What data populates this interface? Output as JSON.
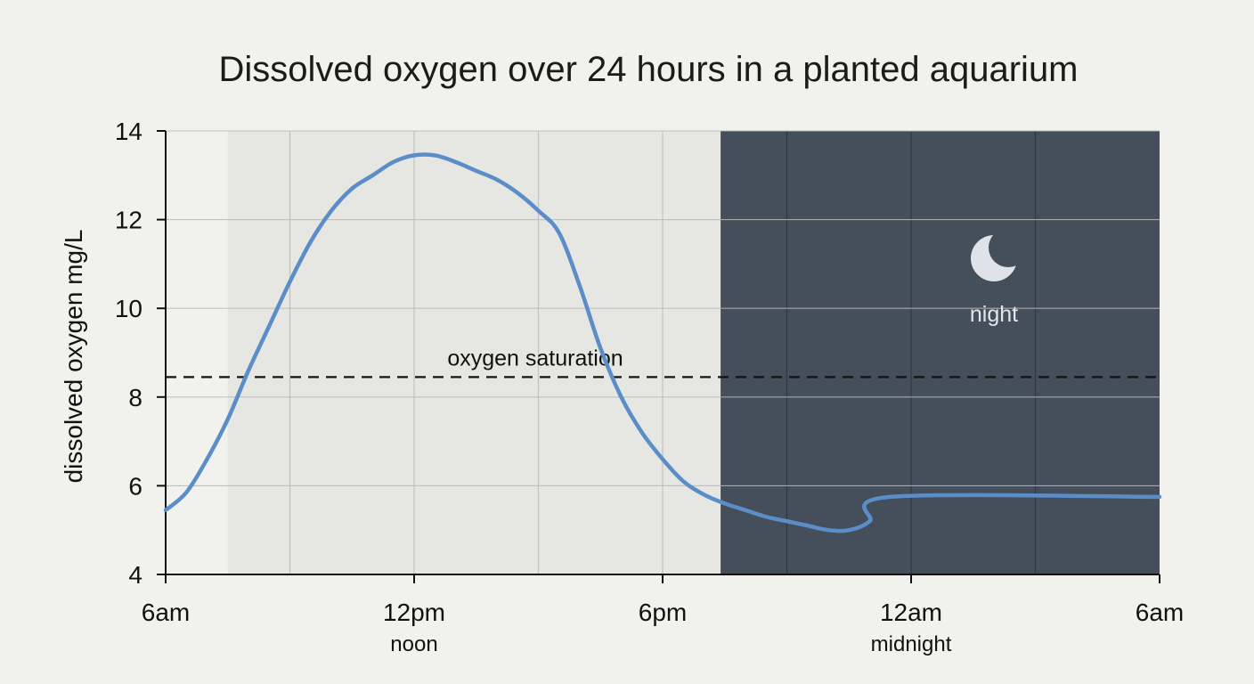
{
  "chart_data": {
    "type": "line",
    "title": "Dissolved oxygen over 24 hours in a planted aquarium",
    "xlabel": "",
    "ylabel": "dissolved oxygen mg/L",
    "ylim": [
      4,
      14
    ],
    "yticks": [
      4,
      6,
      8,
      10,
      12,
      14
    ],
    "xlim": [
      0,
      24
    ],
    "xticks": [
      {
        "hour": 0,
        "label": "6am",
        "sublabel": ""
      },
      {
        "hour": 6,
        "label": "12pm",
        "sublabel": "noon"
      },
      {
        "hour": 12,
        "label": "6pm",
        "sublabel": ""
      },
      {
        "hour": 18,
        "label": "12am",
        "sublabel": "midnight"
      },
      {
        "hour": 24,
        "label": "6am",
        "sublabel": ""
      }
    ],
    "grid": true,
    "series": [
      {
        "name": "",
        "color": "#5b8ec8",
        "x": [
          0,
          0.5,
          1,
          1.5,
          2,
          2.5,
          3,
          3.5,
          4,
          4.5,
          5,
          5.5,
          6,
          6.5,
          7,
          7.5,
          8,
          8.5,
          9,
          9.5,
          10,
          10.5,
          11,
          11.5,
          12,
          12.5,
          13,
          13.5,
          14,
          14.5,
          15,
          15.5,
          16,
          16.5,
          17,
          17.5,
          18,
          18.5,
          19,
          19.5,
          20,
          20.5,
          21,
          21.5,
          22,
          22.5,
          23,
          23.5,
          24
        ],
        "y": [
          5.45,
          5.85,
          6.6,
          7.5,
          8.6,
          9.6,
          10.6,
          11.5,
          12.2,
          12.7,
          13.0,
          13.3,
          13.45,
          13.45,
          13.3,
          13.1,
          12.9,
          12.6,
          12.2,
          11.7,
          10.5,
          9.1,
          8.0,
          7.2,
          6.6,
          6.1,
          5.8,
          5.6,
          5.45,
          5.3,
          5.2,
          5.1,
          5.0,
          5.0,
          5.2,
          5.75,
          5.75,
          5.75,
          5.75,
          5.75,
          5.75,
          5.75,
          5.75,
          5.75,
          5.75,
          5.75,
          5.75,
          5.75,
          5.75
        ]
      }
    ],
    "reference_line": {
      "label": "oxygen saturation",
      "y": 8.45
    },
    "bands": [
      {
        "label": "",
        "from": 1.5,
        "to": 13.4,
        "color": "#e6e6e2"
      },
      {
        "label": "night",
        "from": 13.4,
        "to": 24,
        "color": "#454f5b"
      }
    ]
  }
}
